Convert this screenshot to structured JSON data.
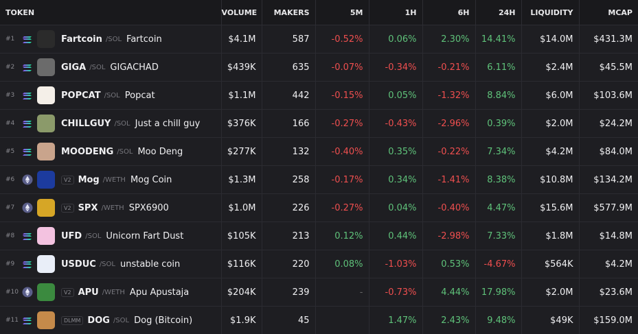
{
  "header": {
    "token": "TOKEN",
    "volume": "VOLUME",
    "makers": "MAKERS",
    "m5": "5M",
    "h1": "1H",
    "h6": "6H",
    "h24": "24H",
    "liquidity": "LIQUIDITY",
    "mcap": "MCAP"
  },
  "rows": [
    {
      "rank": "#1",
      "badge": null,
      "symbol": "Fartcoin",
      "quote": "/SOL",
      "name": "Fartcoin",
      "volume": "$4.1M",
      "makers": "587",
      "m5": "-0.52%",
      "h1": "0.06%",
      "h6": "2.30%",
      "h24": "14.41%",
      "liquidity": "$14.0M",
      "mcap": "$431.3M"
    },
    {
      "rank": "#2",
      "badge": null,
      "symbol": "GIGA",
      "quote": "/SOL",
      "name": "GIGACHAD",
      "volume": "$439K",
      "makers": "635",
      "m5": "-0.07%",
      "h1": "-0.34%",
      "h6": "-0.21%",
      "h24": "6.11%",
      "liquidity": "$2.4M",
      "mcap": "$45.5M"
    },
    {
      "rank": "#3",
      "badge": null,
      "symbol": "POPCAT",
      "quote": "/SOL",
      "name": "Popcat",
      "volume": "$1.1M",
      "makers": "442",
      "m5": "-0.15%",
      "h1": "0.05%",
      "h6": "-1.32%",
      "h24": "8.84%",
      "liquidity": "$6.0M",
      "mcap": "$103.6M"
    },
    {
      "rank": "#4",
      "badge": null,
      "symbol": "CHILLGUY",
      "quote": "/SOL",
      "name": "Just a chill guy",
      "volume": "$376K",
      "makers": "166",
      "m5": "-0.27%",
      "h1": "-0.43%",
      "h6": "-2.96%",
      "h24": "0.39%",
      "liquidity": "$2.0M",
      "mcap": "$24.2M"
    },
    {
      "rank": "#5",
      "badge": null,
      "symbol": "MOODENG",
      "quote": "/SOL",
      "name": "Moo Deng",
      "volume": "$277K",
      "makers": "132",
      "m5": "-0.40%",
      "h1": "0.35%",
      "h6": "-0.22%",
      "h24": "7.34%",
      "liquidity": "$4.2M",
      "mcap": "$84.0M"
    },
    {
      "rank": "#6",
      "badge": "V2",
      "symbol": "Mog",
      "quote": "/WETH",
      "name": "Mog Coin",
      "volume": "$1.3M",
      "makers": "258",
      "m5": "-0.17%",
      "h1": "0.34%",
      "h6": "-1.41%",
      "h24": "8.38%",
      "liquidity": "$10.8M",
      "mcap": "$134.2M"
    },
    {
      "rank": "#7",
      "badge": "V2",
      "symbol": "SPX",
      "quote": "/WETH",
      "name": "SPX6900",
      "volume": "$1.0M",
      "makers": "226",
      "m5": "-0.27%",
      "h1": "0.04%",
      "h6": "-0.40%",
      "h24": "4.47%",
      "liquidity": "$15.6M",
      "mcap": "$577.9M"
    },
    {
      "rank": "#8",
      "badge": null,
      "symbol": "UFD",
      "quote": "/SOL",
      "name": "Unicorn Fart Dust",
      "volume": "$105K",
      "makers": "213",
      "m5": "0.12%",
      "h1": "0.44%",
      "h6": "-2.98%",
      "h24": "7.33%",
      "liquidity": "$1.8M",
      "mcap": "$14.8M"
    },
    {
      "rank": "#9",
      "badge": null,
      "symbol": "USDUC",
      "quote": "/SOL",
      "name": "unstable coin",
      "volume": "$116K",
      "makers": "220",
      "m5": "0.08%",
      "h1": "-1.03%",
      "h6": "0.53%",
      "h24": "-4.67%",
      "liquidity": "$564K",
      "mcap": "$4.2M"
    },
    {
      "rank": "#10",
      "badge": "V2",
      "symbol": "APU",
      "quote": "/WETH",
      "name": "Apu Apustaja",
      "volume": "$204K",
      "makers": "239",
      "m5": "-",
      "h1": "-0.73%",
      "h6": "4.44%",
      "h24": "17.98%",
      "liquidity": "$2.0M",
      "mcap": "$23.6M"
    },
    {
      "rank": "#11",
      "badge": "DLMM",
      "symbol": "DOG",
      "quote": "/SOL",
      "name": "Dog (Bitcoin)",
      "volume": "$1.9K",
      "makers": "45",
      "m5": "",
      "h1": "1.47%",
      "h6": "2.43%",
      "h24": "9.48%",
      "liquidity": "$49K",
      "mcap": "$159.0M"
    }
  ]
}
